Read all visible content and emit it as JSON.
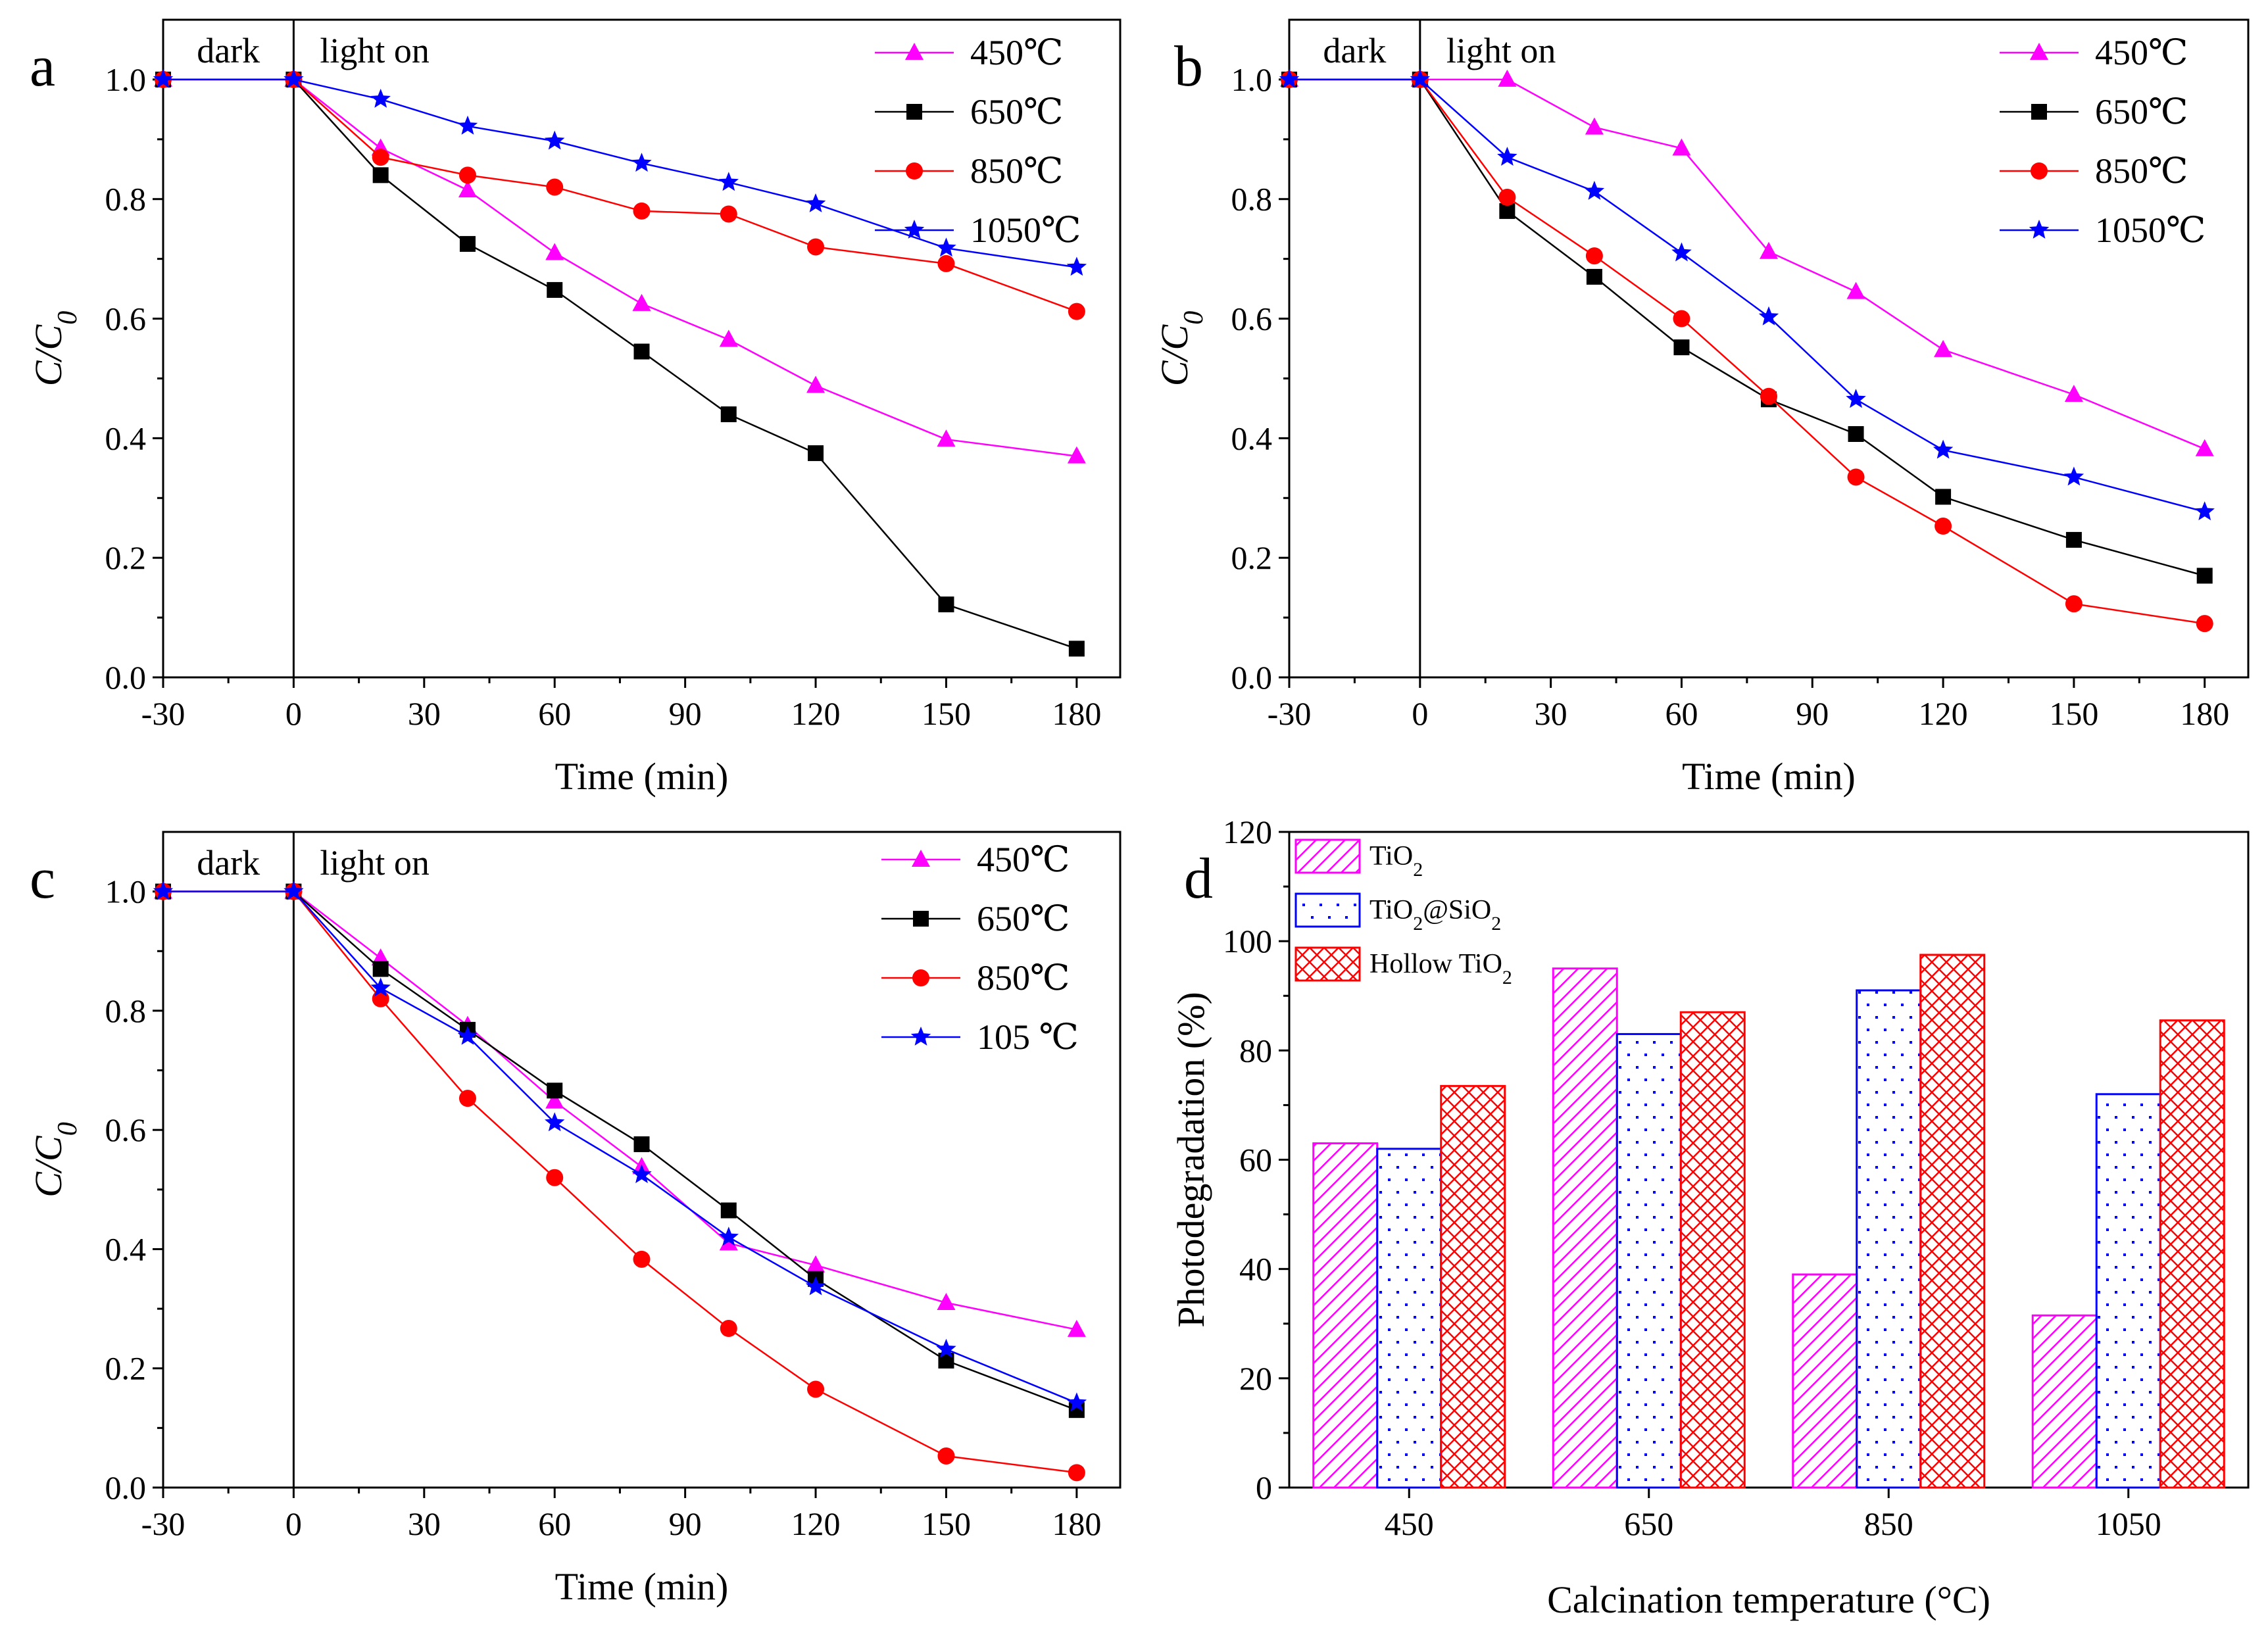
{
  "chart_data": [
    {
      "type": "line",
      "panel": "a",
      "x": [
        -30,
        0,
        20,
        40,
        60,
        80,
        100,
        120,
        150,
        180
      ],
      "series": [
        {
          "name": "450℃",
          "color": "#ff00ff",
          "marker": "triangle",
          "values": [
            1.0,
            1.0,
            0.885,
            0.815,
            0.71,
            0.625,
            0.565,
            0.488,
            0.398,
            0.37
          ]
        },
        {
          "name": "650℃",
          "color": "#000000",
          "marker": "square",
          "values": [
            1.0,
            1.0,
            0.84,
            0.725,
            0.648,
            0.545,
            0.44,
            0.375,
            0.122,
            0.048
          ]
        },
        {
          "name": "850℃",
          "color": "#ff0000",
          "marker": "circle",
          "values": [
            1.0,
            1.0,
            0.87,
            0.84,
            0.82,
            0.78,
            0.775,
            0.72,
            0.692,
            0.612
          ]
        },
        {
          "name": "1050℃",
          "color": "#0000ff",
          "marker": "star",
          "values": [
            1.0,
            1.0,
            0.967,
            0.922,
            0.897,
            0.86,
            0.828,
            0.792,
            0.718,
            0.686
          ]
        }
      ],
      "xlabel": "Time (min)",
      "ylabel": "C/C",
      "ylabel_sub": "0",
      "xticks": [
        "-30",
        "0",
        "30",
        "60",
        "90",
        "120",
        "150",
        "180"
      ],
      "yticks": [
        "0.0",
        "0.2",
        "0.4",
        "0.6",
        "0.8",
        "1.0"
      ],
      "xlim": [
        -30,
        190
      ],
      "ylim": [
        0,
        1.1
      ],
      "legend": "top-right",
      "annotations": {
        "dark": "dark",
        "light": "light on"
      }
    },
    {
      "type": "line",
      "panel": "b",
      "x": [
        -30,
        0,
        20,
        40,
        60,
        80,
        100,
        120,
        150,
        180
      ],
      "series": [
        {
          "name": "450℃",
          "color": "#ff00ff",
          "marker": "triangle",
          "values": [
            1.0,
            1.0,
            1.0,
            0.92,
            0.885,
            0.712,
            0.645,
            0.548,
            0.473,
            0.382
          ]
        },
        {
          "name": "650℃",
          "color": "#000000",
          "marker": "square",
          "values": [
            1.0,
            1.0,
            0.78,
            0.67,
            0.552,
            0.465,
            0.407,
            0.302,
            0.23,
            0.17
          ]
        },
        {
          "name": "850℃",
          "color": "#ff0000",
          "marker": "circle",
          "values": [
            1.0,
            1.0,
            0.803,
            0.705,
            0.6,
            0.47,
            0.335,
            0.253,
            0.123,
            0.09
          ]
        },
        {
          "name": "1050℃",
          "color": "#0000ff",
          "marker": "star",
          "values": [
            1.0,
            1.0,
            0.87,
            0.813,
            0.71,
            0.603,
            0.465,
            0.38,
            0.335,
            0.277
          ]
        }
      ],
      "xlabel": "Time (min)",
      "ylabel": "C/C",
      "ylabel_sub": "0",
      "xticks": [
        "-30",
        "0",
        "30",
        "60",
        "90",
        "120",
        "150",
        "180"
      ],
      "yticks": [
        "0.0",
        "0.2",
        "0.4",
        "0.6",
        "0.8",
        "1.0"
      ],
      "xlim": [
        -30,
        190
      ],
      "ylim": [
        0,
        1.1
      ],
      "legend": "top-right",
      "annotations": {
        "dark": "dark",
        "light": "light on"
      }
    },
    {
      "type": "line",
      "panel": "c",
      "x": [
        -30,
        0,
        20,
        40,
        60,
        80,
        100,
        120,
        150,
        180
      ],
      "series": [
        {
          "name": "450℃",
          "color": "#ff00ff",
          "marker": "triangle",
          "values": [
            1.0,
            1.0,
            0.888,
            0.775,
            0.648,
            0.538,
            0.41,
            0.373,
            0.31,
            0.265
          ]
        },
        {
          "name": "650℃",
          "color": "#000000",
          "marker": "square",
          "values": [
            1.0,
            1.0,
            0.87,
            0.768,
            0.666,
            0.576,
            0.465,
            0.35,
            0.213,
            0.13
          ]
        },
        {
          "name": "850℃",
          "color": "#ff0000",
          "marker": "circle",
          "values": [
            1.0,
            1.0,
            0.82,
            0.653,
            0.52,
            0.383,
            0.267,
            0.165,
            0.053,
            0.025
          ]
        },
        {
          "name": "105 ℃",
          "color": "#0000ff",
          "marker": "star",
          "values": [
            1.0,
            1.0,
            0.838,
            0.757,
            0.612,
            0.525,
            0.42,
            0.337,
            0.232,
            0.142
          ]
        }
      ],
      "xlabel": "Time (min)",
      "ylabel": "C/C",
      "ylabel_sub": "0",
      "xticks": [
        "-30",
        "0",
        "30",
        "60",
        "90",
        "120",
        "150",
        "180"
      ],
      "yticks": [
        "0.0",
        "0.2",
        "0.4",
        "0.6",
        "0.8",
        "1.0"
      ],
      "xlim": [
        -30,
        190
      ],
      "ylim": [
        0,
        1.1
      ],
      "legend": "top-right",
      "annotations": {
        "dark": "dark",
        "light": "light on"
      }
    },
    {
      "type": "bar",
      "panel": "d",
      "categories": [
        "450",
        "650",
        "850",
        "1050"
      ],
      "series": [
        {
          "name": "TiO",
          "sub": "2",
          "color": "#ff00ff",
          "pattern": "hatch",
          "values": [
            63,
            95,
            39,
            31.5
          ]
        },
        {
          "name": "TiO",
          "sub": "2",
          "suffix": "@SiO",
          "suffix_sub": "2",
          "color": "#0000ff",
          "pattern": "dots",
          "values": [
            62,
            83,
            91,
            72
          ]
        },
        {
          "name": "Hollow TiO",
          "sub": "2",
          "color": "#ff0000",
          "pattern": "crosshatch",
          "values": [
            73.5,
            87,
            97.5,
            85.5
          ]
        }
      ],
      "xlabel": "Calcination temperature (°C)",
      "ylabel": "Photodegradation (%)",
      "yticks": [
        "0",
        "20",
        "40",
        "60",
        "80",
        "100",
        "120"
      ],
      "ylim": [
        0,
        120
      ],
      "legend": "top-left"
    }
  ]
}
